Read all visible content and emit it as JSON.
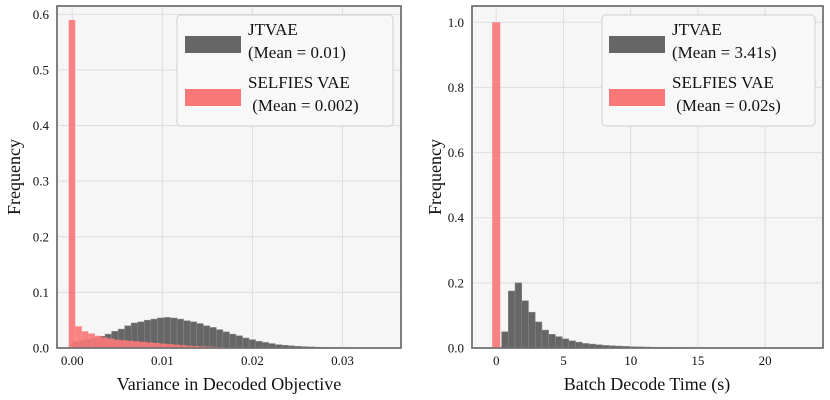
{
  "chart_data": [
    {
      "type": "histogram",
      "xlabel": "Variance in Decoded Objective",
      "ylabel": "Frequency",
      "xlim": [
        -0.0017,
        0.0365
      ],
      "ylim": [
        0,
        0.615
      ],
      "xticks": [
        0.0,
        0.01,
        0.02,
        0.03
      ],
      "xtick_labels": [
        "0.00",
        "0.01",
        "0.02",
        "0.03"
      ],
      "yticks": [
        0,
        0.1,
        0.2,
        0.3,
        0.4,
        0.5,
        0.6
      ],
      "ytick_labels": [
        "0.0",
        "0.1",
        "0.2",
        "0.3",
        "0.4",
        "0.5",
        "0.6"
      ],
      "grid": true,
      "legend_position": "top-right",
      "legend": [
        {
          "name": "JTVAE",
          "stat": "(Mean = 0.01)",
          "color": "#666666"
        },
        {
          "name": "SELFIES VAE",
          "stat": " (Mean = 0.002)",
          "color": "#f87777"
        }
      ],
      "series": [
        {
          "name": "JTVAE",
          "color": "#666666",
          "bin_start": 0.0,
          "bin_width": 0.000727,
          "values": [
            0.011,
            0.014,
            0.016,
            0.018,
            0.021,
            0.025,
            0.03,
            0.034,
            0.04,
            0.045,
            0.047,
            0.05,
            0.052,
            0.054,
            0.055,
            0.054,
            0.052,
            0.049,
            0.047,
            0.044,
            0.04,
            0.037,
            0.033,
            0.029,
            0.025,
            0.022,
            0.018,
            0.015,
            0.012,
            0.01,
            0.008,
            0.006,
            0.005,
            0.004,
            0.003,
            0.0025,
            0.002,
            0.0015,
            0.001,
            0.001,
            0.0007,
            0.0005,
            0.0004,
            0.0003,
            0.0002
          ]
        },
        {
          "name": "SELFIES VAE",
          "color": "#f87777",
          "bin_start": -0.0004,
          "bin_width": 0.000727,
          "values": [
            0.59,
            0.039,
            0.03,
            0.026,
            0.022,
            0.019,
            0.017,
            0.015,
            0.014,
            0.013,
            0.012,
            0.011,
            0.01,
            0.009,
            0.008,
            0.007,
            0.006,
            0.005,
            0.004,
            0.0035,
            0.003,
            0.0025,
            0.002,
            0.0016,
            0.0012,
            0.001,
            0.0007,
            0.0005,
            0.0003
          ]
        }
      ]
    },
    {
      "type": "histogram",
      "xlabel": "Batch Decode Time (s)",
      "ylabel": "Frequency",
      "xlim": [
        -1.8,
        24.3
      ],
      "ylim": [
        0,
        1.05
      ],
      "xticks": [
        0,
        5,
        10,
        15,
        20
      ],
      "xtick_labels": [
        "0",
        "5",
        "10",
        "15",
        "20"
      ],
      "yticks": [
        0,
        0.2,
        0.4,
        0.6,
        0.8,
        1.0
      ],
      "ytick_labels": [
        "0.0",
        "0.2",
        "0.4",
        "0.6",
        "0.8",
        "1.0"
      ],
      "grid": true,
      "legend_position": "top-right",
      "legend": [
        {
          "name": "JTVAE",
          "stat": "(Mean = 3.41s)",
          "color": "#666666"
        },
        {
          "name": "SELFIES VAE",
          "stat": " (Mean = 0.02s)",
          "color": "#f87777"
        }
      ],
      "series": [
        {
          "name": "JTVAE",
          "color": "#666666",
          "bin_start": 0.4,
          "bin_width": 0.5,
          "values": [
            0.05,
            0.175,
            0.2,
            0.145,
            0.11,
            0.08,
            0.055,
            0.042,
            0.035,
            0.028,
            0.022,
            0.018,
            0.014,
            0.012,
            0.01,
            0.008,
            0.007,
            0.006,
            0.005,
            0.004,
            0.0035,
            0.003,
            0.0025,
            0.002,
            0.0018,
            0.0015,
            0.0012,
            0.001,
            0.0009,
            0.0008,
            0.0007,
            0.0006,
            0.0005,
            0.0005,
            0.0004,
            0.0004,
            0.0003,
            0.0003,
            0.0003,
            0.0002,
            0.0002,
            0.0002,
            0.0002,
            0.0002,
            0.0002,
            0.0001,
            0.0001
          ]
        },
        {
          "name": "SELFIES VAE",
          "color": "#f87777",
          "bin_start": -0.3,
          "bin_width": 0.6,
          "values": [
            1.0
          ]
        }
      ]
    }
  ]
}
